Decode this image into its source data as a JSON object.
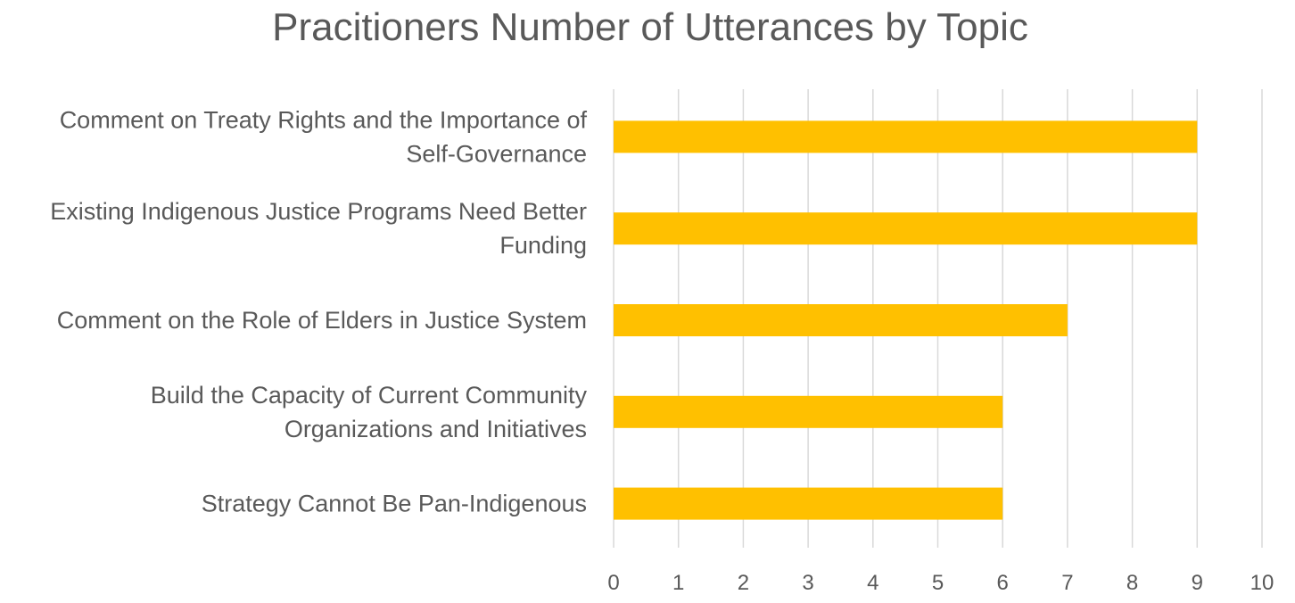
{
  "chart_data": {
    "type": "bar",
    "orientation": "horizontal",
    "title": "Pracitioners Number of Utterances by Topic",
    "categories": [
      [
        "Comment on Treaty Rights and the Importance of",
        "Self-Governance"
      ],
      [
        "Existing Indigenous Justice Programs Need Better",
        "Funding"
      ],
      [
        "Comment on the Role of Elders in Justice System"
      ],
      [
        "Build the Capacity of Current Community",
        "Organizations and Initiatives"
      ],
      [
        "Strategy Cannot Be Pan-Indigenous"
      ]
    ],
    "values": [
      9,
      9,
      7,
      6,
      6
    ],
    "xlim": [
      0,
      10
    ],
    "xticks": [
      "0",
      "1",
      "2",
      "3",
      "4",
      "5",
      "6",
      "7",
      "8",
      "9",
      "10"
    ],
    "grid": true,
    "bar_color": "#FFC000",
    "grid_color": "#D9D9D9",
    "text_color": "#595959"
  }
}
